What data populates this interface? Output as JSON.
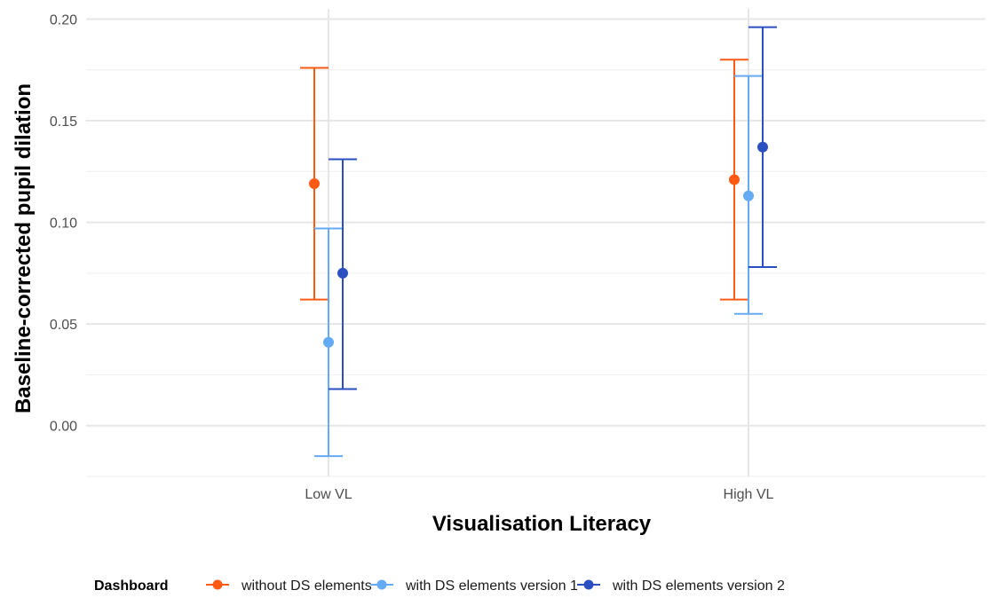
{
  "chart_data": {
    "type": "scatter",
    "subtype": "point-errorbar",
    "title": "",
    "xlabel": "Visualisation Literacy",
    "ylabel": "Baseline-corrected pupil dilation",
    "categories": [
      "Low VL",
      "High VL"
    ],
    "y_ticks": [
      "0.00",
      "0.05",
      "0.10",
      "0.15",
      "0.20"
    ],
    "ylim": [
      -0.025,
      0.205
    ],
    "grid": true,
    "legend": {
      "title": "Dashboard",
      "position": "bottom"
    },
    "series": [
      {
        "name": "without DS elements",
        "color": "#FF5A14",
        "values": [
          0.119,
          0.121
        ],
        "lower": [
          0.062,
          0.062
        ],
        "upper": [
          0.176,
          0.18
        ]
      },
      {
        "name": "with DS elements version 1",
        "color": "#64AAF5",
        "values": [
          0.041,
          0.113
        ],
        "lower": [
          -0.015,
          0.055
        ],
        "upper": [
          0.097,
          0.172
        ]
      },
      {
        "name": "with DS elements version 2",
        "color": "#2A4FC0",
        "values": [
          0.075,
          0.137
        ],
        "lower": [
          0.018,
          0.078
        ],
        "upper": [
          0.131,
          0.196
        ]
      }
    ]
  }
}
